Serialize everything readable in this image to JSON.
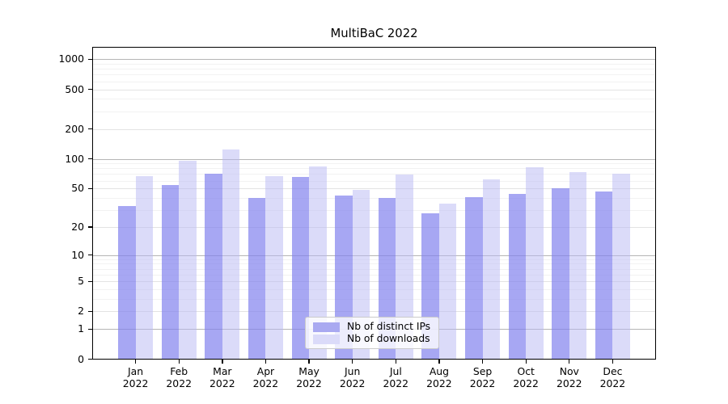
{
  "title": "MultiBaC 2022",
  "chart_data": {
    "type": "bar",
    "title": "MultiBaC 2022",
    "categories": [
      "Jan",
      "Feb",
      "Mar",
      "Apr",
      "May",
      "Jun",
      "Jul",
      "Aug",
      "Sep",
      "Oct",
      "Nov",
      "Dec"
    ],
    "category_year": "2022",
    "series": [
      {
        "name": "Nb of distinct IPs",
        "color": "#a9a9f1",
        "fill": "rgba(128,128,238,0.69)",
        "values": [
          33,
          54,
          70,
          40,
          65,
          42,
          40,
          28,
          41,
          44,
          50,
          47
        ]
      },
      {
        "name": "Nb of downloads",
        "color": "#dbdbf9",
        "fill": "rgba(183,183,244,0.5)",
        "values": [
          67,
          95,
          125,
          67,
          83,
          48,
          69,
          35,
          62,
          82,
          74,
          70
        ]
      }
    ],
    "yscale": "log10(value+1)",
    "yticks": [
      0,
      1,
      2,
      5,
      10,
      20,
      50,
      100,
      200,
      500,
      1000
    ],
    "ylim": [
      0,
      1330
    ],
    "xlabel": "",
    "ylabel": "",
    "grid": true,
    "legend_position": "lower center",
    "grid_colors": {
      "major": "#b5b5b5",
      "mid": "#e3e3e3",
      "minor": "#f2f2f2"
    }
  }
}
